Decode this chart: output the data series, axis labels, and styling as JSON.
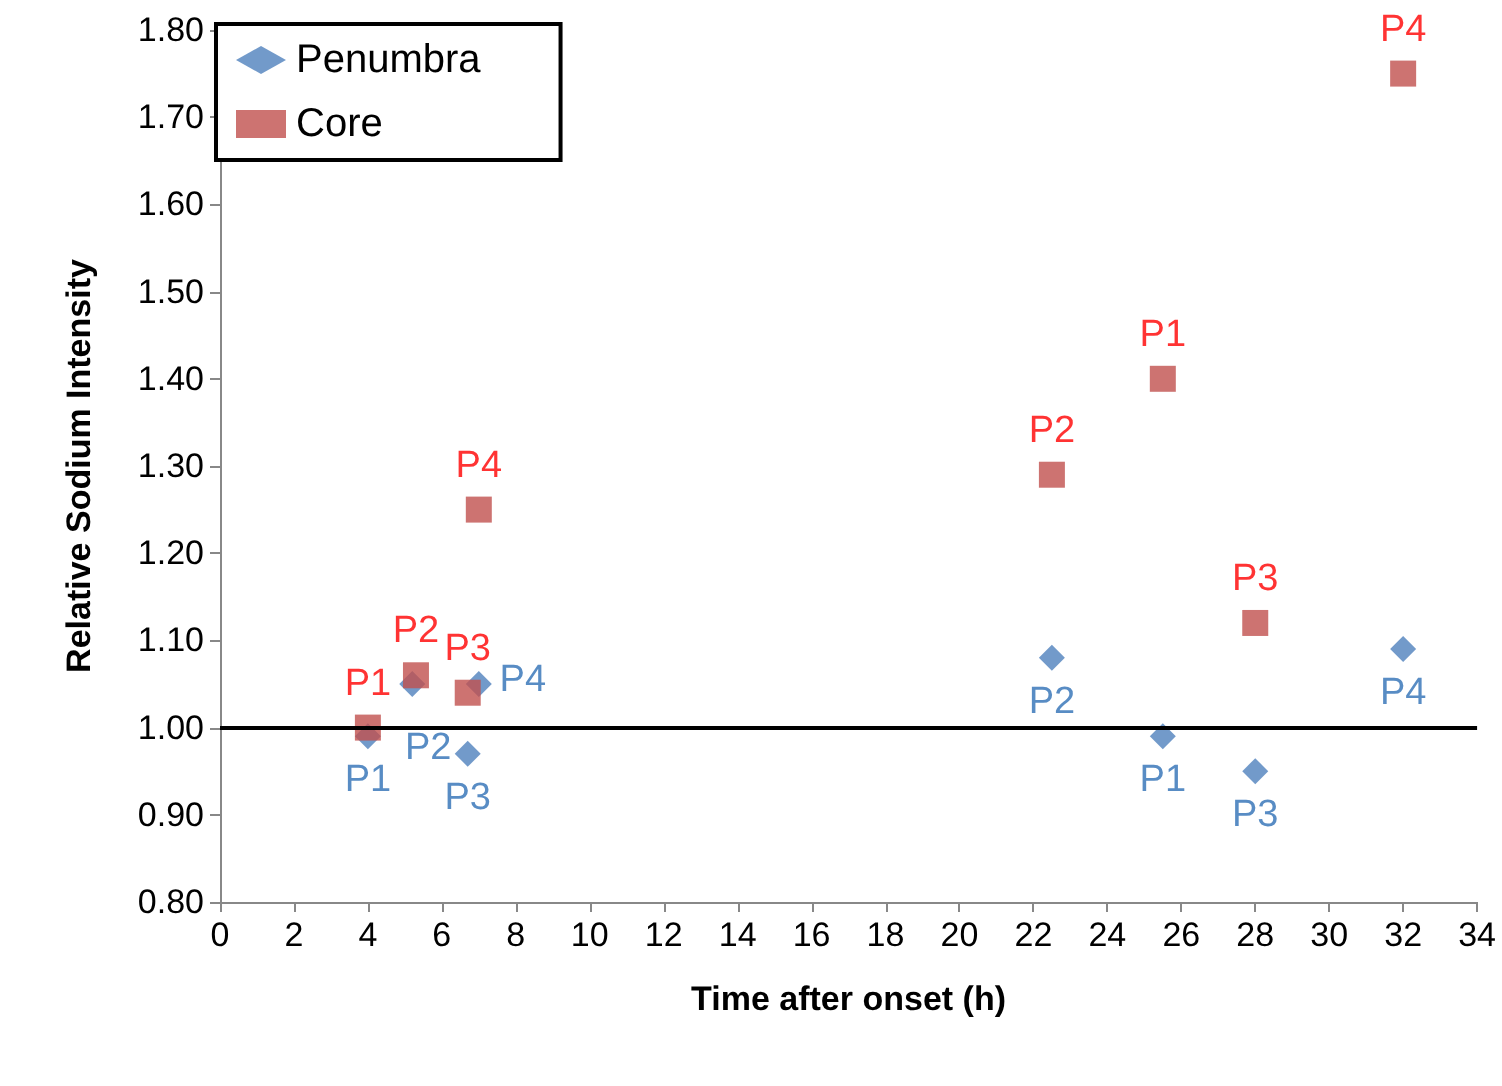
{
  "chart_data": {
    "type": "scatter",
    "xlabel": "Time after onset (h)",
    "ylabel": "Relative Sodium Intensity",
    "xlim": [
      0,
      34
    ],
    "xticks": [
      0,
      2,
      4,
      6,
      8,
      10,
      12,
      14,
      16,
      18,
      20,
      22,
      24,
      26,
      28,
      30,
      32,
      34
    ],
    "ylim": [
      0.8,
      1.8
    ],
    "yticks": [
      {
        "value": 0.8,
        "label": "0.80"
      },
      {
        "value": 0.9,
        "label": "0.90"
      },
      {
        "value": 1.0,
        "label": "1.00"
      },
      {
        "value": 1.1,
        "label": "1.10"
      },
      {
        "value": 1.2,
        "label": "1.20"
      },
      {
        "value": 1.3,
        "label": "1.30"
      },
      {
        "value": 1.4,
        "label": "1.40"
      },
      {
        "value": 1.5,
        "label": "1.50"
      },
      {
        "value": 1.6,
        "label": "1.60"
      },
      {
        "value": 1.7,
        "label": "1.70"
      },
      {
        "value": 1.8,
        "label": "1.80"
      }
    ],
    "grid": false,
    "legend": "top left",
    "ref_lines": [
      {
        "axis": "y",
        "value": 1.0,
        "color": "#000000"
      }
    ],
    "series": [
      {
        "name": "Penumbra",
        "color": "#4f81bd",
        "marker": "diamond",
        "x": [
          4,
          5.2,
          6.7,
          7,
          22.5,
          25.5,
          28,
          32
        ],
        "values": [
          0.99,
          1.05,
          0.97,
          1.05,
          1.08,
          0.99,
          0.95,
          1.09
        ],
        "value_labels": [
          "P1",
          "P2",
          "P3",
          "P4",
          "P2",
          "P1",
          "P3",
          "P4"
        ]
      },
      {
        "name": "Core",
        "color": "#c0504d",
        "marker": "square",
        "x": [
          4,
          5.3,
          6.7,
          7,
          22.5,
          25.5,
          28,
          32
        ],
        "values": [
          1.0,
          1.06,
          1.04,
          1.25,
          1.29,
          1.4,
          1.12,
          1.75
        ],
        "value_labels": [
          "P1",
          "P2",
          "P3",
          "P4",
          "P2",
          "P1",
          "P3",
          "P4"
        ]
      }
    ]
  }
}
